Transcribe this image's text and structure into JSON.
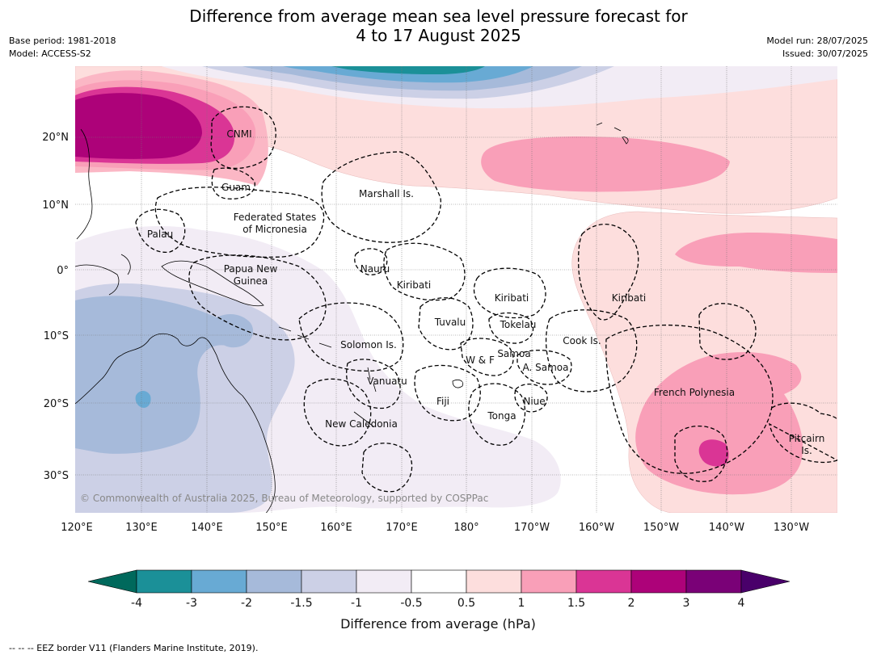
{
  "title_line1": "Difference from average mean sea level pressure forecast for",
  "title_line2": "4 to 17 August 2025",
  "meta": {
    "base_period": "Base period: 1981-2018",
    "model": "Model: ACCESS-S2",
    "model_run": "Model run: 28/07/2025",
    "issued": "Issued: 30/07/2025"
  },
  "map": {
    "lat_labels": [
      "20°N",
      "10°N",
      "0°",
      "10°S",
      "20°S",
      "30°S"
    ],
    "lon_labels": [
      "120°E",
      "130°E",
      "140°E",
      "150°E",
      "160°E",
      "170°E",
      "180°",
      "170°W",
      "160°W",
      "150°W",
      "140°W",
      "130°W"
    ],
    "places": [
      "CNMI",
      "Guam",
      "Marshall Is.",
      "Federated States",
      "of Micronesia",
      "Palau",
      "Papua New",
      "Guinea",
      "Nauru",
      "Kiribati",
      "Kiribati",
      "Kiribati",
      "Tuvalu",
      "Tokelau",
      "Solomon Is.",
      "Cook Is.",
      "W & F",
      "Samoa",
      "A. Samoa",
      "Vanuatu",
      "Fiji",
      "Niue",
      "French Polynesia",
      "Tonga",
      "New Caledonia",
      "Pitcairn",
      "Is."
    ],
    "copyright": "© Commonwealth of Australia 2025, Bureau of Meteorology, supported by COSPPac"
  },
  "legend": {
    "ticks": [
      "-4",
      "-3",
      "-2",
      "-1.5",
      "-1",
      "-0.5",
      "0.5",
      "1",
      "1.5",
      "2",
      "3",
      "4"
    ],
    "colors": [
      "#00695c",
      "#1b9098",
      "#68aad4",
      "#a6bada",
      "#ccd0e6",
      "#f2ecf5",
      "#ffffff",
      "#fddedd",
      "#f99fb8",
      "#da3595",
      "#ad0279",
      "#7a0177",
      "#49006a"
    ],
    "label": "Difference from average (hPa)"
  },
  "footer": "--  --  -- EEZ border V11 (Flanders Marine Institute, 2019)."
}
